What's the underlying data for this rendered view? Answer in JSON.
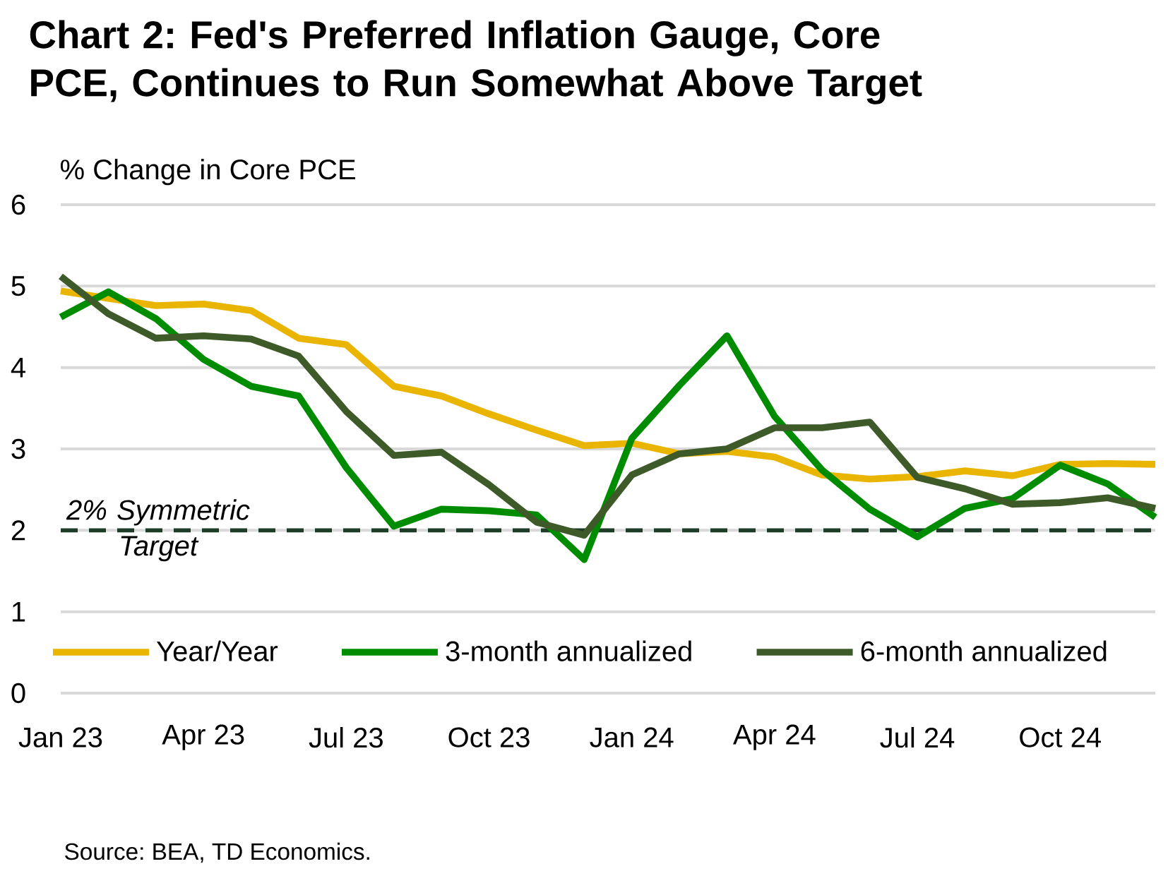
{
  "chart_data": {
    "type": "line",
    "title": "Chart 2: Fed's Preferred Inflation Gauge, Core PCE, Continues to Run Somewhat Above Target",
    "ylabel": "% Change in Core PCE",
    "annotations": [
      "Source: BEA, TD Economics."
    ],
    "categories": [
      "Jan 23",
      null,
      null,
      "Apr 23",
      null,
      null,
      "Jul 23",
      null,
      null,
      "Oct 23",
      null,
      null,
      "Jan 24",
      null,
      null,
      "Apr 24",
      null,
      null,
      "Jul 24",
      null,
      null,
      "Oct 24",
      null,
      null
    ],
    "series": [
      {
        "name": "Year/Year",
        "color": "#e9b500",
        "values": [
          4.94,
          4.85,
          4.76,
          4.78,
          4.7,
          4.36,
          4.28,
          3.77,
          3.65,
          3.43,
          3.23,
          3.04,
          3.07,
          2.94,
          2.97,
          2.9,
          2.68,
          2.63,
          2.66,
          2.73,
          2.67,
          2.81,
          2.82,
          2.81
        ]
      },
      {
        "name": "3-month annualized",
        "color": "#008c00",
        "values": [
          4.62,
          4.93,
          4.6,
          4.1,
          3.77,
          3.65,
          2.77,
          2.05,
          2.26,
          2.24,
          2.19,
          1.64,
          3.13,
          3.78,
          4.39,
          3.4,
          2.74,
          2.26,
          1.92,
          2.27,
          2.39,
          2.8,
          2.57,
          2.16
        ]
      },
      {
        "name": "6-month annualized",
        "color": "#3d5a28",
        "values": [
          5.12,
          4.66,
          4.36,
          4.39,
          4.35,
          4.14,
          3.46,
          2.92,
          2.96,
          2.56,
          2.1,
          1.94,
          2.68,
          2.94,
          3.0,
          3.26,
          3.26,
          3.33,
          2.65,
          2.51,
          2.32,
          2.34,
          2.4,
          2.27
        ]
      }
    ],
    "ylim": [
      0,
      6
    ],
    "yticks": [
      0,
      1,
      2,
      3,
      4,
      5,
      6
    ],
    "grid": "y",
    "legend": "bottom",
    "line_style": "solid",
    "ref_lines": [
      {
        "axis": "y",
        "value": 2,
        "label": "2% Symmetric Target",
        "color": "#1e3c28",
        "line_style": "dashed"
      }
    ]
  }
}
